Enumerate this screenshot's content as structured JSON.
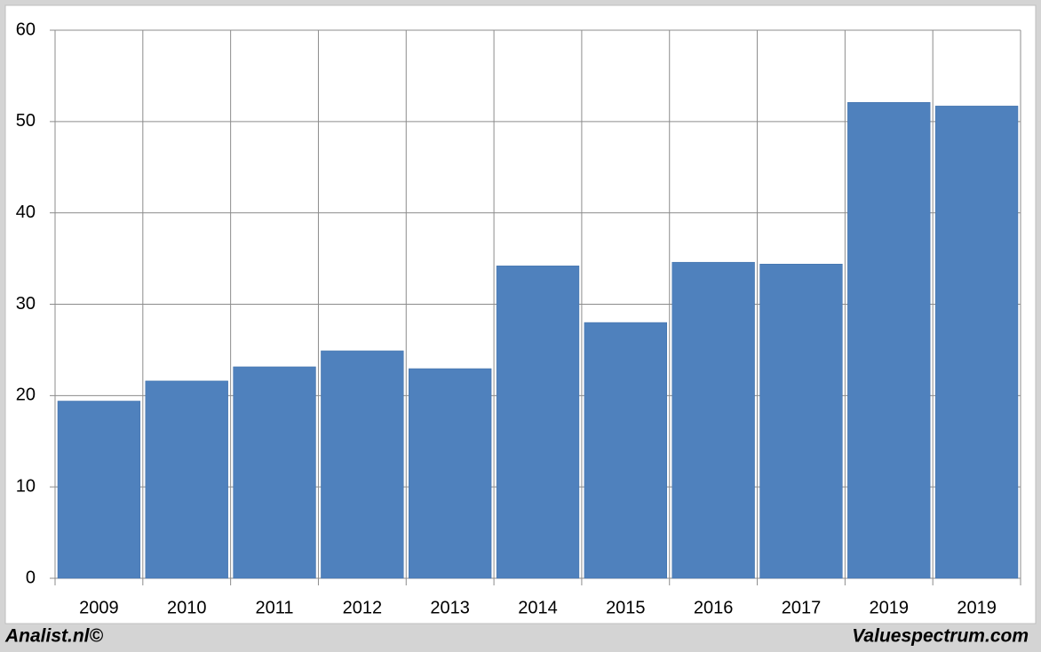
{
  "chart_data": {
    "type": "bar",
    "categories": [
      "2009",
      "2010",
      "2011",
      "2012",
      "2013",
      "2014",
      "2015",
      "2016",
      "2017",
      "2019",
      "2019"
    ],
    "values": [
      19.4,
      21.6,
      23.15,
      24.9,
      22.95,
      34.2,
      28.0,
      34.6,
      34.4,
      52.1,
      51.7
    ],
    "color": "#4f81bd",
    "ylim": [
      0,
      60
    ],
    "yticks": [
      0,
      10,
      20,
      30,
      40,
      50,
      60
    ],
    "grid": true
  },
  "footer": {
    "left": "Analist.nl©",
    "right": "Valuespectrum.com"
  }
}
